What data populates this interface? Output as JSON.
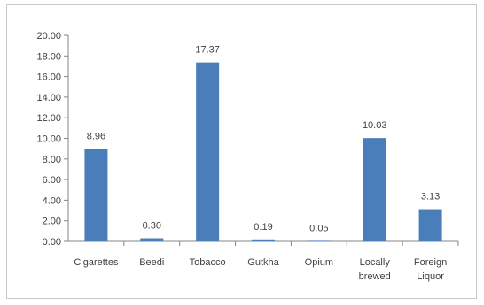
{
  "chart_data": {
    "type": "bar",
    "title": "",
    "xlabel": "",
    "ylabel": "",
    "categories": [
      "Cigarettes",
      "Beedi",
      "Tobacco",
      "Gutkha",
      "Opium",
      "Locally brewed",
      "Foreign Liquor"
    ],
    "category_lines": [
      [
        "Cigarettes"
      ],
      [
        "Beedi"
      ],
      [
        "Tobacco"
      ],
      [
        "Gutkha"
      ],
      [
        "Opium"
      ],
      [
        "Locally",
        "brewed"
      ],
      [
        "Foreign",
        "Liquor"
      ]
    ],
    "values": [
      8.96,
      0.3,
      17.37,
      0.19,
      0.05,
      10.03,
      3.13
    ],
    "value_labels": [
      "8.96",
      "0.30",
      "17.37",
      "0.19",
      "0.05",
      "10.03",
      "3.13"
    ],
    "ylim": [
      0,
      20
    ],
    "yticks": [
      "0.00",
      "2.00",
      "4.00",
      "6.00",
      "8.00",
      "10.00",
      "12.00",
      "14.00",
      "16.00",
      "18.00",
      "20.00"
    ],
    "bar_color": "#4a7ebb",
    "grid": false,
    "legend": "none"
  }
}
